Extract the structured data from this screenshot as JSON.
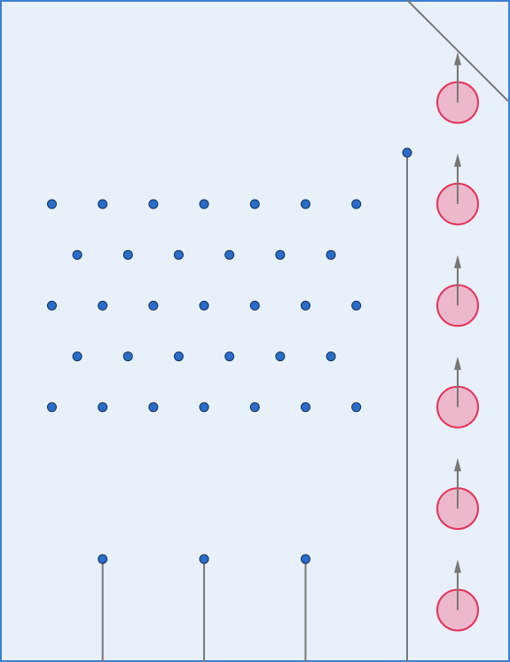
{
  "colors": {
    "background": "#e8f0f9",
    "border": "#3e7fd0",
    "peg_fill": "#2a6dc9",
    "peg_stroke": "#12325e",
    "line": "#777777",
    "ball_fill": "#ecb9cc",
    "ball_stroke": "#e8305a",
    "arrow": "#777777"
  },
  "board": {
    "peg_field": {
      "rows": 5,
      "long_row_pegs": 7,
      "short_row_pegs": 6
    },
    "bin_dividers": 3,
    "launch_lane": {
      "balls": 6,
      "direction": "up"
    }
  }
}
